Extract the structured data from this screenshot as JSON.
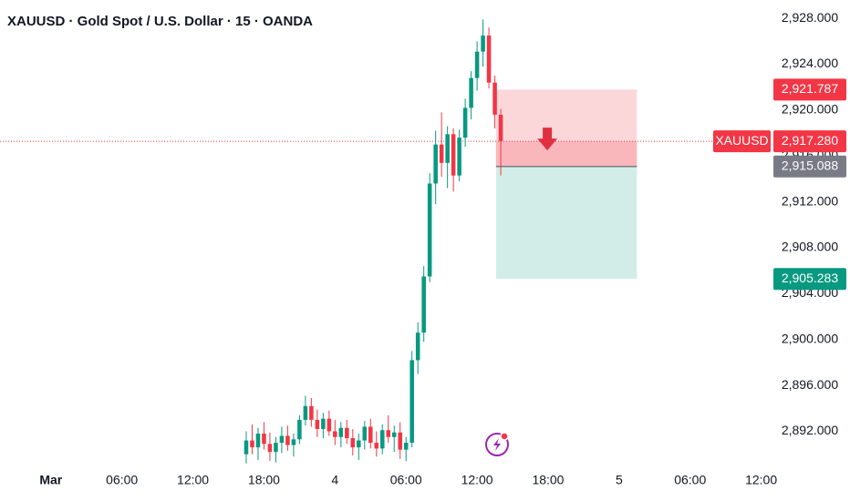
{
  "chart_data": {
    "type": "candlestick",
    "title": "XAUUSD · Gold Spot / U.S. Dollar · 15 · OANDA",
    "up_color": "#089981",
    "down_color": "#f23645",
    "xlim": [
      -4.3,
      60.8
    ],
    "xticks": [
      {
        "value": 0,
        "label": "Mar"
      },
      {
        "value": 6,
        "label": "06:00"
      },
      {
        "value": 12,
        "label": "12:00"
      },
      {
        "value": 18,
        "label": "18:00"
      },
      {
        "value": 24,
        "label": "4"
      },
      {
        "value": 30,
        "label": "06:00"
      },
      {
        "value": 36,
        "label": "12:00"
      },
      {
        "value": 42,
        "label": "18:00"
      },
      {
        "value": 48,
        "label": "5"
      },
      {
        "value": 54,
        "label": "06:00"
      },
      {
        "value": 60,
        "label": "12:00"
      }
    ],
    "ylim": [
      2889.1,
      2929.6
    ],
    "yticks": [
      {
        "value": 2892,
        "label": "2,892.000"
      },
      {
        "value": 2896,
        "label": "2,896.000"
      },
      {
        "value": 2900,
        "label": "2,900.000"
      },
      {
        "value": 2904,
        "label": "2,904.000"
      },
      {
        "value": 2908,
        "label": "2,908.000"
      },
      {
        "value": 2912,
        "label": "2,912.000"
      },
      {
        "value": 2916,
        "label": "2,916.000"
      },
      {
        "value": 2920,
        "label": "2,920.000"
      },
      {
        "value": 2924,
        "label": "2,924.000"
      },
      {
        "value": 2928,
        "label": "2,928.000"
      }
    ],
    "x": [
      16.5,
      17,
      17.5,
      18,
      18.5,
      19,
      19.5,
      20,
      20.5,
      21,
      21.5,
      22,
      22.5,
      23,
      23.5,
      24,
      24.5,
      25,
      25.5,
      26,
      26.5,
      27,
      27.5,
      28,
      28.5,
      29,
      29.5,
      30,
      30.5,
      31,
      31.5,
      32,
      32.5,
      33,
      33.5,
      34,
      34.5,
      35,
      35.5,
      36,
      36.5,
      37,
      37.5,
      38
    ],
    "open": [
      2890.0,
      2891.2,
      2890.6,
      2891.8,
      2890.9,
      2890.2,
      2891.0,
      2891.6,
      2890.8,
      2891.3,
      2893.0,
      2894.2,
      2893.0,
      2892.2,
      2893.1,
      2892.0,
      2891.5,
      2892.3,
      2891.4,
      2890.6,
      2891.2,
      2892.4,
      2891.0,
      2890.5,
      2892.1,
      2891.5,
      2891.9,
      2890.4,
      2891.0,
      2898.2,
      2900.6,
      2905.5,
      2913.6,
      2917.0,
      2915.4,
      2917.9,
      2914.3,
      2917.6,
      2920.2,
      2922.8,
      2925.1,
      2926.5,
      2922.4,
      2919.6
    ],
    "high": [
      2892.0,
      2892.6,
      2892.3,
      2892.8,
      2891.9,
      2891.5,
      2892.4,
      2892.5,
      2891.8,
      2893.4,
      2895.1,
      2894.9,
      2893.9,
      2893.6,
      2893.8,
      2893.0,
      2892.8,
      2893.0,
      2892.2,
      2891.8,
      2892.9,
      2893.1,
      2892.0,
      2892.6,
      2893.4,
      2892.5,
      2892.8,
      2891.5,
      2899.0,
      2901.5,
      2906.4,
      2914.5,
      2918.2,
      2919.8,
      2918.6,
      2918.4,
      2918.3,
      2921.0,
      2923.4,
      2926.0,
      2927.9,
      2927.2,
      2923.0,
      2920.1
    ],
    "low": [
      2889.2,
      2890.0,
      2889.5,
      2890.4,
      2889.4,
      2889.3,
      2890.1,
      2890.3,
      2889.8,
      2890.9,
      2892.5,
      2892.4,
      2891.5,
      2891.4,
      2891.6,
      2890.8,
      2890.6,
      2890.9,
      2889.9,
      2889.5,
      2890.4,
      2890.5,
      2889.8,
      2890.0,
      2891.0,
      2890.2,
      2889.6,
      2889.4,
      2890.6,
      2897.0,
      2899.8,
      2905.0,
      2911.8,
      2914.2,
      2913.2,
      2912.9,
      2913.8,
      2916.8,
      2919.2,
      2921.7,
      2923.8,
      2921.9,
      2918.4,
      2914.3
    ],
    "close": [
      2891.2,
      2890.6,
      2891.8,
      2890.9,
      2890.2,
      2891.0,
      2891.6,
      2890.8,
      2891.3,
      2893.0,
      2894.2,
      2893.0,
      2892.2,
      2893.1,
      2892.0,
      2891.5,
      2892.3,
      2891.4,
      2890.6,
      2891.2,
      2892.4,
      2891.0,
      2890.5,
      2892.1,
      2891.5,
      2891.9,
      2890.4,
      2891.0,
      2898.2,
      2900.6,
      2905.5,
      2913.6,
      2917.0,
      2915.4,
      2917.9,
      2914.3,
      2917.6,
      2920.2,
      2922.8,
      2925.1,
      2926.5,
      2922.4,
      2919.6,
      2917.3
    ],
    "position": {
      "start_x": 37.6,
      "end_x": 49.5,
      "stop": {
        "value": 2921.787,
        "label": "2,921.787"
      },
      "entry": {
        "value": 2915.088,
        "label": "2,915.088"
      },
      "target": {
        "value": 2905.283,
        "label": "2,905.283"
      }
    },
    "last_price": {
      "name": "XAUUSD",
      "value": 2917.28,
      "label": "2,917.280"
    }
  }
}
